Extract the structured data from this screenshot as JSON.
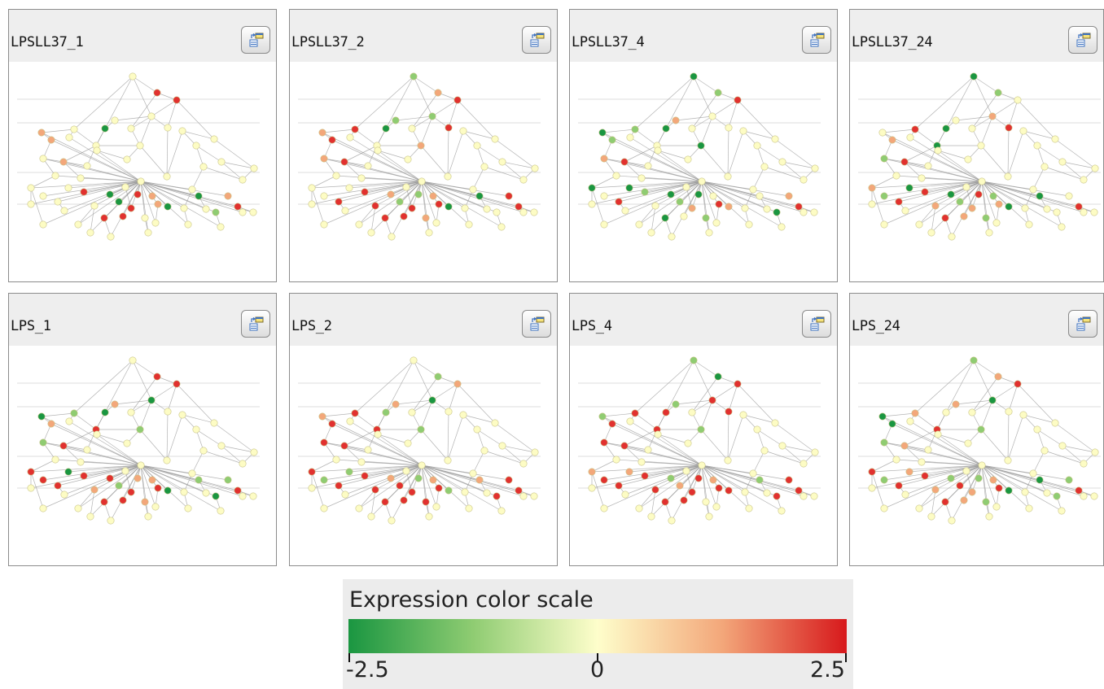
{
  "panels": [
    {
      "title": "LPSLL37_1",
      "action_button": "panel-options-icon",
      "colors": {
        "1": "#e1312f",
        "2": "#e1312f",
        "7": "#1a9641",
        "10": "#f3a77a",
        "11": "#f3a77a",
        "13": "#f3a77a",
        "18": "#e1312f",
        "20": "#1a9641",
        "21": "#1a9641",
        "22": "#e1312f",
        "23": "#e1312f",
        "24": "#f3a77a",
        "25": "#f3a77a",
        "26": "#1a9641",
        "27": "#e1312f",
        "28": "#e1312f",
        "30": "#1a9641",
        "31": "#8fcc72",
        "32": "#f3a77a",
        "33": "#e1312f"
      }
    },
    {
      "title": "LPSLL37_2",
      "action_button": "panel-options-icon",
      "colors": {
        "0": "#8fcc72",
        "1": "#f3a77a",
        "2": "#e1312f",
        "3": "#8fcc72",
        "4": "#e1312f",
        "5": "#f3a77a",
        "7": "#1a9641",
        "8": "#8fcc72",
        "9": "#e1312f",
        "10": "#f3a77a",
        "11": "#e1312f",
        "12": "#f3a77a",
        "13": "#e1312f",
        "16": "#e1312f",
        "18": "#e1312f",
        "19": "#e1312f",
        "20": "#f3a77a",
        "21": "#8fcc72",
        "22": "#e1312f",
        "23": "#8fcc72",
        "24": "#f3a77a",
        "25": "#e1312f",
        "26": "#1a9641",
        "27": "#e1312f",
        "28": "#e1312f",
        "29": "#f3a77a",
        "30": "#1a9641",
        "32": "#e1312f",
        "33": "#e1312f"
      }
    },
    {
      "title": "LPSLL37_4",
      "action_button": "panel-options-icon",
      "colors": {
        "0": "#1a9641",
        "1": "#8fcc72",
        "2": "#e1312f",
        "5": "#1a9641",
        "7": "#1a9641",
        "8": "#f3a77a",
        "9": "#8fcc72",
        "10": "#1a9641",
        "11": "#8fcc72",
        "12": "#f3a77a",
        "13": "#e1312f",
        "14": "#1a9641",
        "16": "#e1312f",
        "17": "#1a9641",
        "18": "#8fcc72",
        "20": "#1a9641",
        "21": "#8fcc72",
        "22": "#f3a77a",
        "23": "#1a9641",
        "25": "#e1312f",
        "26": "#f3a77a",
        "27": "#1a9641",
        "29": "#8fcc72",
        "31": "#1a9641",
        "32": "#f3a77a",
        "33": "#e1312f"
      }
    },
    {
      "title": "LPSLL37_24",
      "action_button": "panel-options-icon",
      "colors": {
        "0": "#1a9641",
        "1": "#8fcc72",
        "3": "#f3a77a",
        "4": "#e1312f",
        "6": "#1a9641",
        "7": "#1a9641",
        "9": "#e1312f",
        "11": "#f3a77a",
        "12": "#8fcc72",
        "13": "#e1312f",
        "14": "#f3a77a",
        "15": "#8fcc72",
        "16": "#e1312f",
        "17": "#1a9641",
        "18": "#e1312f",
        "19": "#f3a77a",
        "20": "#1a9641",
        "21": "#8fcc72",
        "22": "#f3a77a",
        "23": "#e1312f",
        "24": "#8fcc72",
        "25": "#f3a77a",
        "26": "#1a9641",
        "27": "#e1312f",
        "28": "#f3a77a",
        "29": "#8fcc72",
        "30": "#1a9641",
        "33": "#e1312f"
      }
    },
    {
      "title": "LPS_1",
      "action_button": "panel-options-icon",
      "colors": {
        "1": "#e1312f",
        "2": "#e1312f",
        "3": "#1a9641",
        "5": "#8fcc72",
        "6": "#e1312f",
        "7": "#1a9641",
        "8": "#f3a77a",
        "9": "#8fcc72",
        "10": "#1a9641",
        "11": "#f3a77a",
        "12": "#8fcc72",
        "13": "#e1312f",
        "14": "#e1312f",
        "15": "#e1312f",
        "16": "#e1312f",
        "17": "#1a9641",
        "18": "#e1312f",
        "19": "#f3a77a",
        "20": "#e1312f",
        "21": "#8fcc72",
        "22": "#e1312f",
        "23": "#f3a77a",
        "24": "#f3a77a",
        "25": "#e1312f",
        "26": "#1a9641",
        "27": "#e1312f",
        "28": "#e1312f",
        "29": "#f3a77a",
        "30": "#8fcc72",
        "31": "#1a9641",
        "32": "#8fcc72",
        "33": "#e1312f"
      }
    },
    {
      "title": "LPS_2",
      "action_button": "panel-options-icon",
      "colors": {
        "1": "#8fcc72",
        "2": "#f3a77a",
        "3": "#1a9641",
        "5": "#8fcc72",
        "6": "#e1312f",
        "7": "#8fcc72",
        "8": "#f3a77a",
        "9": "#e1312f",
        "10": "#f3a77a",
        "11": "#e1312f",
        "12": "#e1312f",
        "13": "#e1312f",
        "14": "#e1312f",
        "15": "#8fcc72",
        "16": "#e1312f",
        "17": "#8fcc72",
        "18": "#e1312f",
        "19": "#e1312f",
        "20": "#f3a77a",
        "21": "#e1312f",
        "22": "#e1312f",
        "23": "#8fcc72",
        "24": "#f3a77a",
        "25": "#e1312f",
        "26": "#8fcc72",
        "27": "#e1312f",
        "28": "#e1312f",
        "29": "#e1312f",
        "30": "#f3a77a",
        "31": "#e1312f",
        "32": "#e1312f",
        "33": "#e1312f"
      }
    },
    {
      "title": "LPS_4",
      "action_button": "panel-options-icon",
      "colors": {
        "0": "#8fcc72",
        "1": "#1a9641",
        "2": "#e1312f",
        "3": "#e1312f",
        "4": "#e1312f",
        "5": "#8fcc72",
        "6": "#e1312f",
        "7": "#e1312f",
        "8": "#8fcc72",
        "9": "#e1312f",
        "10": "#8fcc72",
        "11": "#e1312f",
        "12": "#e1312f",
        "13": "#e1312f",
        "14": "#f3a77a",
        "15": "#e1312f",
        "16": "#e1312f",
        "17": "#f3a77a",
        "18": "#e1312f",
        "19": "#e1312f",
        "20": "#8fcc72",
        "21": "#f3a77a",
        "22": "#e1312f",
        "23": "#e1312f",
        "24": "#f3a77a",
        "25": "#e1312f",
        "26": "#e1312f",
        "27": "#e1312f",
        "28": "#e1312f",
        "30": "#8fcc72",
        "31": "#e1312f",
        "32": "#e1312f",
        "33": "#e1312f"
      }
    },
    {
      "title": "LPS_24",
      "action_button": "panel-options-icon",
      "colors": {
        "0": "#8fcc72",
        "1": "#f3a77a",
        "2": "#e1312f",
        "3": "#1a9641",
        "5": "#8fcc72",
        "6": "#e1312f",
        "8": "#f3a77a",
        "9": "#f3a77a",
        "10": "#1a9641",
        "11": "#1a9641",
        "12": "#8fcc72",
        "13": "#f3a77a",
        "14": "#e1312f",
        "15": "#8fcc72",
        "16": "#e1312f",
        "17": "#f3a77a",
        "18": "#e1312f",
        "19": "#f3a77a",
        "20": "#8fcc72",
        "21": "#e1312f",
        "22": "#f3a77a",
        "23": "#8fcc72",
        "24": "#f3a77a",
        "25": "#e1312f",
        "26": "#1a9641",
        "27": "#e1312f",
        "28": "#f3a77a",
        "29": "#8fcc72",
        "30": "#1a9641",
        "31": "#8fcc72",
        "32": "#8fcc72",
        "33": "#e1312f"
      }
    }
  ],
  "node_default_color": "#fdfcc4",
  "edge_color": "#999999",
  "legend": {
    "title": "Expression color scale",
    "min_label": "-2.5",
    "mid_label": "0",
    "max_label": "2.5",
    "colors": [
      "#1a9641",
      "#fefecb",
      "#d7191c"
    ]
  }
}
